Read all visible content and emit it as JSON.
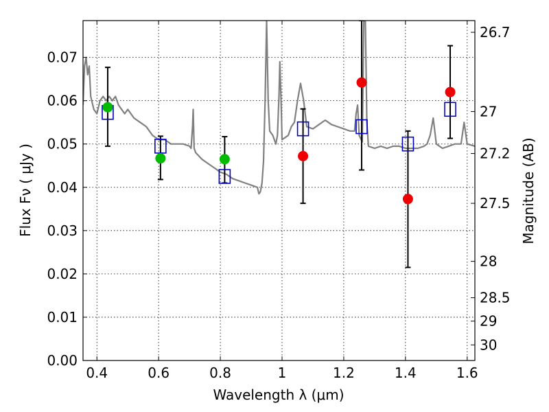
{
  "chart_data": {
    "type": "scatter",
    "xlabel": "Wavelength  λ (μm)",
    "ylabel": "Flux  Fν  ( μJy )",
    "y2label": "Magnitude (AB)",
    "xlim": [
      0.355,
      1.625
    ],
    "ylim": [
      0.0,
      0.0785
    ],
    "grid": true,
    "x_ticks": [
      {
        "value": 0.4,
        "label": "0.4"
      },
      {
        "value": 0.6,
        "label": "0.6"
      },
      {
        "value": 0.8,
        "label": "0.8"
      },
      {
        "value": 1.0,
        "label": "1"
      },
      {
        "value": 1.2,
        "label": "1.2"
      },
      {
        "value": 1.4,
        "label": "1.4"
      },
      {
        "value": 1.6,
        "label": "1.6"
      }
    ],
    "y_ticks": [
      {
        "value": 0.0,
        "label": "0.00"
      },
      {
        "value": 0.01,
        "label": "0.01"
      },
      {
        "value": 0.02,
        "label": "0.02"
      },
      {
        "value": 0.03,
        "label": "0.03"
      },
      {
        "value": 0.04,
        "label": "0.04"
      },
      {
        "value": 0.05,
        "label": "0.05"
      },
      {
        "value": 0.06,
        "label": "0.06"
      },
      {
        "value": 0.07,
        "label": "0.07"
      }
    ],
    "y2_ticks": [
      {
        "flux": 0.0758,
        "label": "26.7"
      },
      {
        "flux": 0.0575,
        "label": "27"
      },
      {
        "flux": 0.0478,
        "label": "27.2"
      },
      {
        "flux": 0.0363,
        "label": "27.5"
      },
      {
        "flux": 0.0229,
        "label": "28"
      },
      {
        "flux": 0.0145,
        "label": "28.5"
      },
      {
        "flux": 0.0091,
        "label": "29"
      },
      {
        "flux": 0.0036,
        "label": "30"
      }
    ],
    "series": [
      {
        "kind": "model-spectrum",
        "color": "#808080",
        "points": [
          [
            0.355,
            0.059
          ],
          [
            0.36,
            0.068
          ],
          [
            0.365,
            0.07
          ],
          [
            0.37,
            0.066
          ],
          [
            0.375,
            0.068
          ],
          [
            0.38,
            0.061
          ],
          [
            0.39,
            0.058
          ],
          [
            0.4,
            0.057
          ],
          [
            0.41,
            0.06
          ],
          [
            0.42,
            0.061
          ],
          [
            0.43,
            0.06
          ],
          [
            0.44,
            0.061
          ],
          [
            0.45,
            0.06
          ],
          [
            0.46,
            0.061
          ],
          [
            0.47,
            0.059
          ],
          [
            0.48,
            0.058
          ],
          [
            0.49,
            0.057
          ],
          [
            0.5,
            0.058
          ],
          [
            0.52,
            0.056
          ],
          [
            0.54,
            0.055
          ],
          [
            0.56,
            0.054
          ],
          [
            0.58,
            0.052
          ],
          [
            0.6,
            0.051
          ],
          [
            0.62,
            0.051
          ],
          [
            0.64,
            0.05
          ],
          [
            0.66,
            0.05
          ],
          [
            0.68,
            0.05
          ],
          [
            0.7,
            0.0495
          ],
          [
            0.705,
            0.049
          ],
          [
            0.71,
            0.054
          ],
          [
            0.712,
            0.058
          ],
          [
            0.715,
            0.049
          ],
          [
            0.72,
            0.048
          ],
          [
            0.74,
            0.0465
          ],
          [
            0.76,
            0.0455
          ],
          [
            0.78,
            0.0445
          ],
          [
            0.8,
            0.0435
          ],
          [
            0.82,
            0.043
          ],
          [
            0.84,
            0.042
          ],
          [
            0.86,
            0.0415
          ],
          [
            0.88,
            0.041
          ],
          [
            0.9,
            0.0405
          ],
          [
            0.92,
            0.04
          ],
          [
            0.925,
            0.0385
          ],
          [
            0.93,
            0.039
          ],
          [
            0.935,
            0.041
          ],
          [
            0.94,
            0.046
          ],
          [
            0.945,
            0.06
          ],
          [
            0.95,
            0.0785
          ],
          [
            0.955,
            0.06
          ],
          [
            0.96,
            0.053
          ],
          [
            0.97,
            0.052
          ],
          [
            0.98,
            0.05
          ],
          [
            0.985,
            0.052
          ],
          [
            0.99,
            0.061
          ],
          [
            0.993,
            0.069
          ],
          [
            0.997,
            0.06
          ],
          [
            1.0,
            0.051
          ],
          [
            1.01,
            0.0515
          ],
          [
            1.02,
            0.052
          ],
          [
            1.03,
            0.054
          ],
          [
            1.04,
            0.055
          ],
          [
            1.05,
            0.06
          ],
          [
            1.06,
            0.064
          ],
          [
            1.07,
            0.06
          ],
          [
            1.08,
            0.054
          ],
          [
            1.1,
            0.0535
          ],
          [
            1.12,
            0.0545
          ],
          [
            1.14,
            0.0555
          ],
          [
            1.16,
            0.0545
          ],
          [
            1.18,
            0.054
          ],
          [
            1.2,
            0.0535
          ],
          [
            1.22,
            0.053
          ],
          [
            1.235,
            0.053
          ],
          [
            1.24,
            0.057
          ],
          [
            1.245,
            0.059
          ],
          [
            1.25,
            0.052
          ],
          [
            1.26,
            0.0505
          ],
          [
            1.265,
            0.0785
          ],
          [
            1.27,
            0.0785
          ],
          [
            1.275,
            0.055
          ],
          [
            1.28,
            0.0495
          ],
          [
            1.3,
            0.049
          ],
          [
            1.32,
            0.0495
          ],
          [
            1.34,
            0.049
          ],
          [
            1.36,
            0.0495
          ],
          [
            1.38,
            0.0495
          ],
          [
            1.4,
            0.049
          ],
          [
            1.42,
            0.049
          ],
          [
            1.44,
            0.049
          ],
          [
            1.46,
            0.0495
          ],
          [
            1.47,
            0.05
          ],
          [
            1.48,
            0.052
          ],
          [
            1.49,
            0.056
          ],
          [
            1.5,
            0.05
          ],
          [
            1.52,
            0.049
          ],
          [
            1.54,
            0.0495
          ],
          [
            1.56,
            0.05
          ],
          [
            1.58,
            0.05
          ],
          [
            1.59,
            0.055
          ],
          [
            1.6,
            0.05
          ],
          [
            1.625,
            0.0495
          ]
        ]
      },
      {
        "kind": "green-points",
        "color": "#00bb00",
        "points": [
          {
            "x": 0.435,
            "y": 0.0585
          },
          {
            "x": 0.606,
            "y": 0.0467
          },
          {
            "x": 0.814,
            "y": 0.0465
          }
        ]
      },
      {
        "kind": "red-points",
        "color": "#ee0000",
        "points": [
          {
            "x": 1.068,
            "y": 0.0472
          },
          {
            "x": 1.258,
            "y": 0.0642
          },
          {
            "x": 1.408,
            "y": 0.0373
          },
          {
            "x": 1.545,
            "y": 0.062
          }
        ]
      },
      {
        "kind": "blue-squares",
        "color": "#0000cc",
        "points": [
          {
            "x": 0.435,
            "y": 0.0573
          },
          {
            "x": 0.606,
            "y": 0.0495
          },
          {
            "x": 0.814,
            "y": 0.0425
          },
          {
            "x": 1.068,
            "y": 0.0535
          },
          {
            "x": 1.258,
            "y": 0.054
          },
          {
            "x": 1.408,
            "y": 0.05
          },
          {
            "x": 1.545,
            "y": 0.058
          }
        ]
      }
    ],
    "error_bars": [
      {
        "x": 0.435,
        "low": 0.0495,
        "high": 0.0677
      },
      {
        "x": 0.606,
        "low": 0.0418,
        "high": 0.0518
      },
      {
        "x": 0.814,
        "low": 0.041,
        "high": 0.0517
      },
      {
        "x": 1.068,
        "low": 0.0363,
        "high": 0.0581
      },
      {
        "x": 1.258,
        "low": 0.044,
        "high": 0.0785
      },
      {
        "x": 1.408,
        "low": 0.0215,
        "high": 0.053
      },
      {
        "x": 1.545,
        "low": 0.0513,
        "high": 0.0727
      }
    ]
  }
}
